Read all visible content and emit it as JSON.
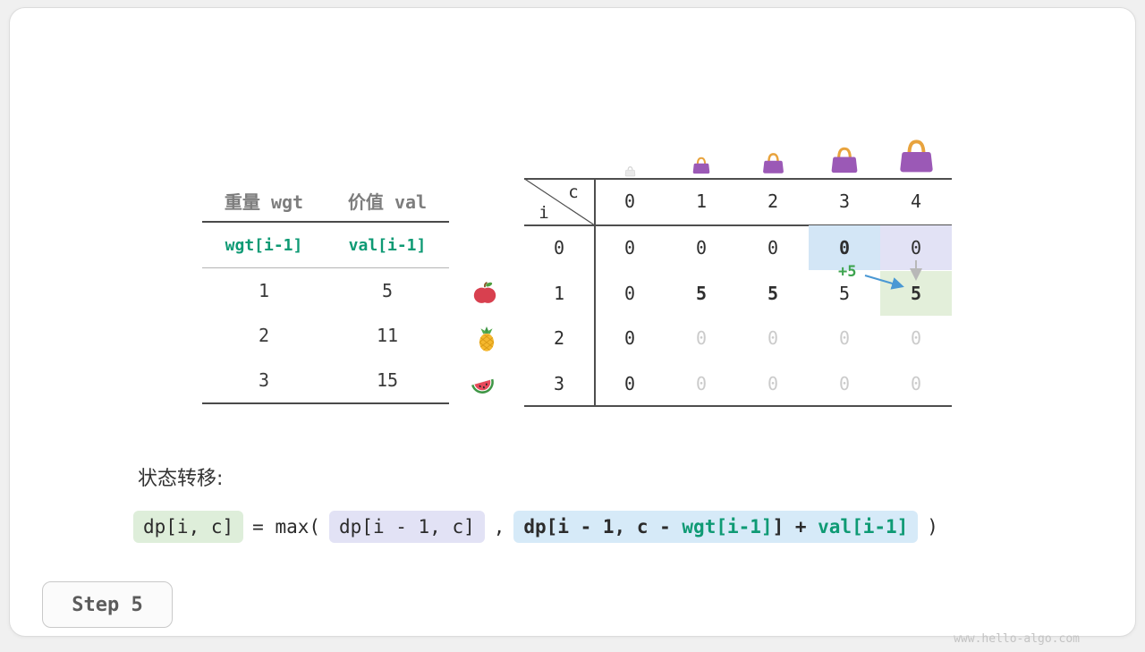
{
  "page": {
    "step_label": "Step 5",
    "watermark": "www.hello-algo.com"
  },
  "items_table": {
    "headers": [
      "重量 wgt",
      "价值 val"
    ],
    "formula_row": [
      "wgt[i-1]",
      "val[i-1]"
    ],
    "rows": [
      {
        "wgt": "1",
        "val": "5",
        "icon": "apple-icon"
      },
      {
        "wgt": "2",
        "val": "11",
        "icon": "pineapple-icon"
      },
      {
        "wgt": "3",
        "val": "15",
        "icon": "watermelon-icon"
      }
    ]
  },
  "dp_table": {
    "corner": {
      "col_label": "c",
      "row_label": "i"
    },
    "col_headers": [
      "0",
      "1",
      "2",
      "3",
      "4"
    ],
    "row_headers": [
      "0",
      "1",
      "2",
      "3"
    ],
    "bags": [
      {
        "col": 0,
        "size": 13,
        "style": "faded"
      },
      {
        "col": 1,
        "size": 22,
        "style": "normal"
      },
      {
        "col": 2,
        "size": 27,
        "style": "normal"
      },
      {
        "col": 3,
        "size": 34,
        "style": "normal"
      },
      {
        "col": 4,
        "size": 43,
        "style": "normal"
      }
    ],
    "cells": [
      [
        {
          "v": "0",
          "s": "normal"
        },
        {
          "v": "0",
          "s": "normal"
        },
        {
          "v": "0",
          "s": "normal"
        },
        {
          "v": "0",
          "s": "bold",
          "bg": "blue"
        },
        {
          "v": "0",
          "s": "normal",
          "bg": "lavender"
        }
      ],
      [
        {
          "v": "0",
          "s": "normal"
        },
        {
          "v": "5",
          "s": "bold"
        },
        {
          "v": "5",
          "s": "bold"
        },
        {
          "v": "5",
          "s": "normal"
        },
        {
          "v": "5",
          "s": "bold",
          "bg": "green"
        }
      ],
      [
        {
          "v": "0",
          "s": "normal"
        },
        {
          "v": "0",
          "s": "gray"
        },
        {
          "v": "0",
          "s": "gray"
        },
        {
          "v": "0",
          "s": "gray"
        },
        {
          "v": "0",
          "s": "gray"
        }
      ],
      [
        {
          "v": "0",
          "s": "normal"
        },
        {
          "v": "0",
          "s": "gray"
        },
        {
          "v": "0",
          "s": "gray"
        },
        {
          "v": "0",
          "s": "gray"
        },
        {
          "v": "0",
          "s": "gray"
        }
      ]
    ],
    "annotation": {
      "plus_label": "+5"
    }
  },
  "transition": {
    "title": "状态转移:",
    "lhs": "dp[i, c]",
    "eq": "= max(",
    "left_term": "dp[i - 1, c]",
    "comma": ",",
    "right_term_p1": "dp[i - 1, c - ",
    "right_term_wgt": "wgt[i-1]",
    "right_term_p2": "] + ",
    "right_term_val": "val[i-1]",
    "close": ")"
  },
  "colors": {
    "accent_green": "#0e9a74",
    "highlight_blue": "#d3e6f6",
    "highlight_lavender": "#e2e2f5",
    "highlight_green": "#e3efda",
    "box_green": "#deeeda",
    "box_lavender": "#e2e2f5",
    "box_blue": "#d6eaf8",
    "arrow_blue": "#4a98d4",
    "arrow_gray": "#b8b8b8",
    "plus_green": "#3ea44f"
  }
}
